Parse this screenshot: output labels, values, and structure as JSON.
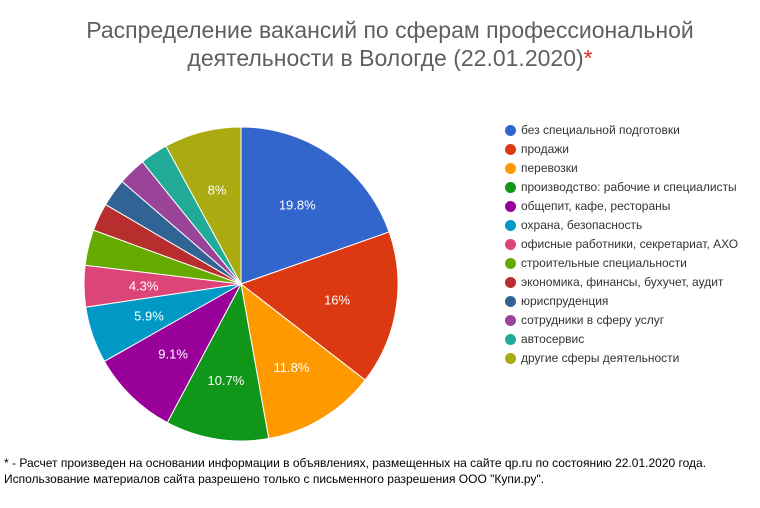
{
  "title": {
    "line1": "Распределение вакансий по сферам профессиональной",
    "line2": "деятельности в Вологде (22.01.2020)",
    "star": "*"
  },
  "chart_data": {
    "type": "pie",
    "title": "Распределение вакансий по сферам профессиональной деятельности в Вологде (22.01.2020)*",
    "legend_position": "right",
    "slices": [
      {
        "name": "без специальной подготовки",
        "value": 19.8,
        "label": "19.8%",
        "color": "#3366cc"
      },
      {
        "name": "продажи",
        "value": 16.0,
        "label": "16%",
        "color": "#dc3912"
      },
      {
        "name": "перевозки",
        "value": 11.8,
        "label": "11.8%",
        "color": "#ff9900"
      },
      {
        "name": "производство: рабочие и специалисты",
        "value": 10.7,
        "label": "10.7%",
        "color": "#109618"
      },
      {
        "name": "общепит, кафе, рестораны",
        "value": 9.1,
        "label": "9.1%",
        "color": "#990099"
      },
      {
        "name": "охрана, безопасность",
        "value": 5.9,
        "label": "5.9%",
        "color": "#0099c6"
      },
      {
        "name": "офисные работники, секретариат, АХО",
        "value": 4.3,
        "label": "4.3%",
        "color": "#dd4477"
      },
      {
        "name": "строительные специальности",
        "value": 3.7,
        "label": "",
        "color": "#66aa00"
      },
      {
        "name": "экономика, финансы, бухучет, аудит",
        "value": 2.9,
        "label": "",
        "color": "#b82e2e"
      },
      {
        "name": "юриспруденция",
        "value": 2.9,
        "label": "",
        "color": "#316395"
      },
      {
        "name": "сотрудники в сферу услуг",
        "value": 2.9,
        "label": "",
        "color": "#994499"
      },
      {
        "name": "автосервис",
        "value": 2.9,
        "label": "",
        "color": "#22aa99"
      },
      {
        "name": "другие сферы деятельности",
        "value": 8.0,
        "label": "8%",
        "color": "#aaaa11"
      }
    ]
  },
  "footnote": {
    "line1": "* - Расчет произведен на основании информации в объявлениях, размещенных на сайте qp.ru по состоянию 22.01.2020 года.",
    "line2": "Использование материалов сайта разрешено только с письменного разрешения ООО \"Купи.ру\"."
  }
}
